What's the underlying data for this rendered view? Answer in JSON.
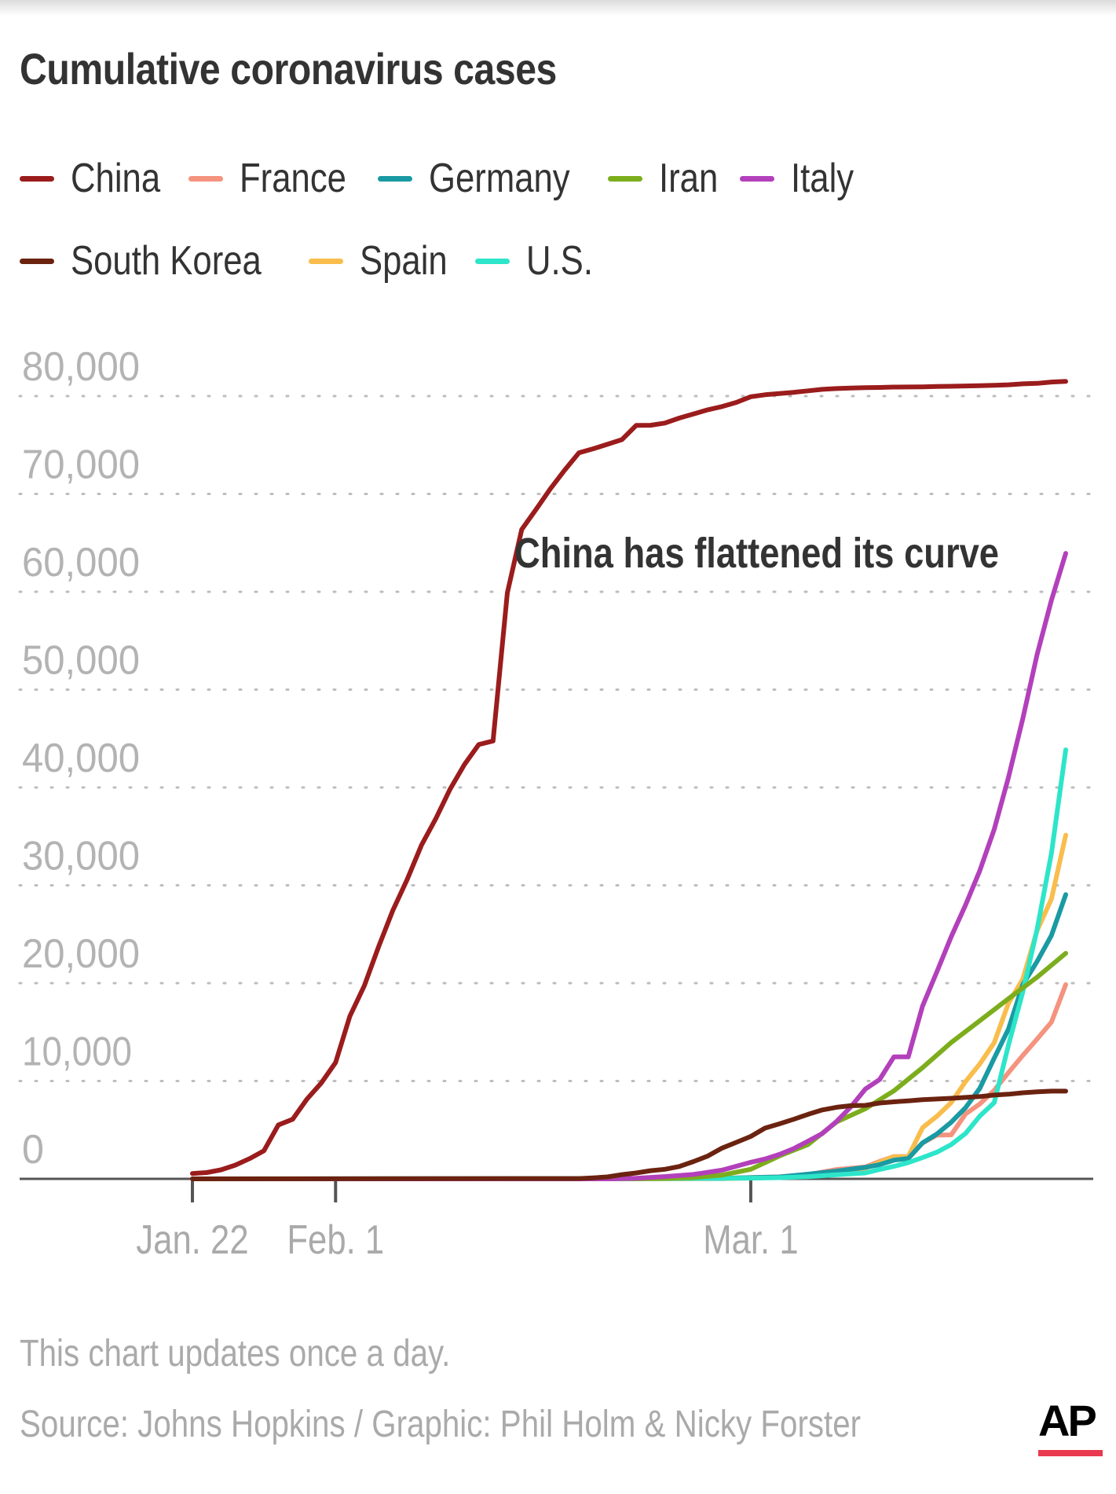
{
  "title": "Cumulative coronavirus cases",
  "note": "This chart updates once a day.",
  "source": "Source: Johns Hopkins / Graphic: Phil Holm & Nicky Forster",
  "logo": "AP",
  "logo_accent_color": "#e8394f",
  "chart_data": {
    "type": "line",
    "title": "Cumulative coronavirus cases",
    "annotation": "China has flattened its curve",
    "x_tick_labels": [
      "Jan. 22",
      "Feb. 1",
      "Mar. 1"
    ],
    "x_tick_dates": [
      "2020-01-22",
      "2020-02-01",
      "2020-03-01"
    ],
    "x_range": [
      "2020-01-22",
      "2020-03-24"
    ],
    "y_tick_labels": [
      "0",
      "10,000",
      "20,000",
      "30,000",
      "40,000",
      "50,000",
      "60,000",
      "70,000",
      "80,000"
    ],
    "y_ticks": [
      0,
      10000,
      20000,
      30000,
      40000,
      50000,
      60000,
      70000,
      80000
    ],
    "ylim": [
      0,
      80000
    ],
    "grid": "horizontal dotted",
    "legend_position": "top",
    "series": [
      {
        "name": "China",
        "color": "#9b1c1c",
        "points": [
          [
            "2020-01-22",
            548
          ],
          [
            "2020-01-23",
            643
          ],
          [
            "2020-01-24",
            920
          ],
          [
            "2020-01-25",
            1406
          ],
          [
            "2020-01-26",
            2075
          ],
          [
            "2020-01-27",
            2877
          ],
          [
            "2020-01-28",
            5509
          ],
          [
            "2020-01-29",
            6087
          ],
          [
            "2020-01-30",
            8141
          ],
          [
            "2020-01-31",
            9802
          ],
          [
            "2020-02-01",
            11891
          ],
          [
            "2020-02-02",
            16630
          ],
          [
            "2020-02-03",
            19716
          ],
          [
            "2020-02-04",
            23707
          ],
          [
            "2020-02-05",
            27440
          ],
          [
            "2020-02-06",
            30587
          ],
          [
            "2020-02-07",
            34110
          ],
          [
            "2020-02-08",
            36814
          ],
          [
            "2020-02-09",
            39829
          ],
          [
            "2020-02-10",
            42354
          ],
          [
            "2020-02-11",
            44386
          ],
          [
            "2020-02-12",
            44759
          ],
          [
            "2020-02-13",
            59895
          ],
          [
            "2020-02-14",
            66358
          ],
          [
            "2020-02-15",
            68413
          ],
          [
            "2020-02-16",
            70513
          ],
          [
            "2020-02-17",
            72434
          ],
          [
            "2020-02-18",
            74211
          ],
          [
            "2020-02-19",
            74619
          ],
          [
            "2020-02-20",
            75077
          ],
          [
            "2020-02-21",
            75550
          ],
          [
            "2020-02-22",
            77001
          ],
          [
            "2020-02-23",
            77022
          ],
          [
            "2020-02-24",
            77241
          ],
          [
            "2020-02-25",
            77754
          ],
          [
            "2020-02-26",
            78166
          ],
          [
            "2020-02-27",
            78600
          ],
          [
            "2020-02-28",
            78928
          ],
          [
            "2020-02-29",
            79356
          ],
          [
            "2020-03-01",
            79932
          ],
          [
            "2020-03-02",
            80136
          ],
          [
            "2020-03-03",
            80261
          ],
          [
            "2020-03-04",
            80386
          ],
          [
            "2020-03-05",
            80537
          ],
          [
            "2020-03-06",
            80690
          ],
          [
            "2020-03-07",
            80770
          ],
          [
            "2020-03-08",
            80823
          ],
          [
            "2020-03-09",
            80860
          ],
          [
            "2020-03-10",
            80887
          ],
          [
            "2020-03-11",
            80921
          ],
          [
            "2020-03-12",
            80932
          ],
          [
            "2020-03-13",
            80945
          ],
          [
            "2020-03-14",
            80977
          ],
          [
            "2020-03-15",
            81003
          ],
          [
            "2020-03-16",
            81033
          ],
          [
            "2020-03-17",
            81058
          ],
          [
            "2020-03-18",
            81102
          ],
          [
            "2020-03-19",
            81156
          ],
          [
            "2020-03-20",
            81250
          ],
          [
            "2020-03-21",
            81305
          ],
          [
            "2020-03-22",
            81435
          ],
          [
            "2020-03-23",
            81498
          ]
        ]
      },
      {
        "name": "France",
        "color": "#f4937e",
        "points": [
          [
            "2020-01-22",
            0
          ],
          [
            "2020-02-20",
            12
          ],
          [
            "2020-02-28",
            57
          ],
          [
            "2020-03-01",
            130
          ],
          [
            "2020-03-03",
            212
          ],
          [
            "2020-03-05",
            423
          ],
          [
            "2020-03-07",
            955
          ],
          [
            "2020-03-09",
            1209
          ],
          [
            "2020-03-10",
            1784
          ],
          [
            "2020-03-11",
            2284
          ],
          [
            "2020-03-12",
            2284
          ],
          [
            "2020-03-13",
            3661
          ],
          [
            "2020-03-14",
            4469
          ],
          [
            "2020-03-15",
            4499
          ],
          [
            "2020-03-16",
            6633
          ],
          [
            "2020-03-17",
            7652
          ],
          [
            "2020-03-18",
            9043
          ],
          [
            "2020-03-19",
            10871
          ],
          [
            "2020-03-20",
            12612
          ],
          [
            "2020-03-21",
            14282
          ],
          [
            "2020-03-22",
            16018
          ],
          [
            "2020-03-23",
            19856
          ]
        ]
      },
      {
        "name": "Germany",
        "color": "#1a9aa3",
        "points": [
          [
            "2020-01-22",
            0
          ],
          [
            "2020-02-20",
            16
          ],
          [
            "2020-02-28",
            48
          ],
          [
            "2020-03-01",
            130
          ],
          [
            "2020-03-03",
            196
          ],
          [
            "2020-03-05",
            482
          ],
          [
            "2020-03-07",
            799
          ],
          [
            "2020-03-09",
            1176
          ],
          [
            "2020-03-10",
            1457
          ],
          [
            "2020-03-11",
            1908
          ],
          [
            "2020-03-12",
            2078
          ],
          [
            "2020-03-13",
            3675
          ],
          [
            "2020-03-14",
            4585
          ],
          [
            "2020-03-15",
            5795
          ],
          [
            "2020-03-16",
            7272
          ],
          [
            "2020-03-17",
            9257
          ],
          [
            "2020-03-18",
            12327
          ],
          [
            "2020-03-19",
            15320
          ],
          [
            "2020-03-20",
            19848
          ],
          [
            "2020-03-21",
            22213
          ],
          [
            "2020-03-22",
            24873
          ],
          [
            "2020-03-23",
            29056
          ]
        ]
      },
      {
        "name": "Iran",
        "color": "#7cad1c",
        "points": [
          [
            "2020-01-22",
            0
          ],
          [
            "2020-02-18",
            0
          ],
          [
            "2020-02-22",
            28
          ],
          [
            "2020-02-24",
            61
          ],
          [
            "2020-02-26",
            139
          ],
          [
            "2020-02-28",
            388
          ],
          [
            "2020-03-01",
            978
          ],
          [
            "2020-03-03",
            2336
          ],
          [
            "2020-03-05",
            3513
          ],
          [
            "2020-03-07",
            5823
          ],
          [
            "2020-03-09",
            7161
          ],
          [
            "2020-03-11",
            9000
          ],
          [
            "2020-03-13",
            11364
          ],
          [
            "2020-03-15",
            13938
          ],
          [
            "2020-03-17",
            16169
          ],
          [
            "2020-03-19",
            18407
          ],
          [
            "2020-03-21",
            20610
          ],
          [
            "2020-03-23",
            23049
          ]
        ]
      },
      {
        "name": "Italy",
        "color": "#b340bb",
        "points": [
          [
            "2020-01-22",
            0
          ],
          [
            "2020-02-20",
            3
          ],
          [
            "2020-02-22",
            62
          ],
          [
            "2020-02-24",
            229
          ],
          [
            "2020-02-26",
            453
          ],
          [
            "2020-02-28",
            888
          ],
          [
            "2020-03-01",
            1694
          ],
          [
            "2020-03-02",
            2036
          ],
          [
            "2020-03-03",
            2502
          ],
          [
            "2020-03-04",
            3089
          ],
          [
            "2020-03-05",
            3858
          ],
          [
            "2020-03-06",
            4636
          ],
          [
            "2020-03-07",
            5883
          ],
          [
            "2020-03-08",
            7375
          ],
          [
            "2020-03-09",
            9172
          ],
          [
            "2020-03-10",
            10149
          ],
          [
            "2020-03-11",
            12462
          ],
          [
            "2020-03-12",
            12462
          ],
          [
            "2020-03-13",
            17660
          ],
          [
            "2020-03-14",
            21157
          ],
          [
            "2020-03-15",
            24747
          ],
          [
            "2020-03-16",
            27980
          ],
          [
            "2020-03-17",
            31506
          ],
          [
            "2020-03-18",
            35713
          ],
          [
            "2020-03-19",
            41035
          ],
          [
            "2020-03-20",
            47021
          ],
          [
            "2020-03-21",
            53578
          ],
          [
            "2020-03-22",
            59138
          ],
          [
            "2020-03-23",
            63927
          ]
        ]
      },
      {
        "name": "South Korea",
        "color": "#6b2310",
        "points": [
          [
            "2020-01-22",
            1
          ],
          [
            "2020-02-16",
            29
          ],
          [
            "2020-02-18",
            31
          ],
          [
            "2020-02-19",
            104
          ],
          [
            "2020-02-20",
            204
          ],
          [
            "2020-02-21",
            433
          ],
          [
            "2020-02-22",
            602
          ],
          [
            "2020-02-23",
            833
          ],
          [
            "2020-02-24",
            977
          ],
          [
            "2020-02-25",
            1261
          ],
          [
            "2020-02-26",
            1766
          ],
          [
            "2020-02-27",
            2337
          ],
          [
            "2020-02-28",
            3150
          ],
          [
            "2020-02-29",
            3736
          ],
          [
            "2020-03-01",
            4335
          ],
          [
            "2020-03-02",
            5186
          ],
          [
            "2020-03-03",
            5621
          ],
          [
            "2020-03-04",
            6088
          ],
          [
            "2020-03-05",
            6593
          ],
          [
            "2020-03-06",
            7041
          ],
          [
            "2020-03-07",
            7314
          ],
          [
            "2020-03-08",
            7478
          ],
          [
            "2020-03-09",
            7513
          ],
          [
            "2020-03-10",
            7755
          ],
          [
            "2020-03-11",
            7869
          ],
          [
            "2020-03-12",
            7979
          ],
          [
            "2020-03-13",
            8086
          ],
          [
            "2020-03-14",
            8162
          ],
          [
            "2020-03-15",
            8236
          ],
          [
            "2020-03-16",
            8320
          ],
          [
            "2020-03-17",
            8413
          ],
          [
            "2020-03-18",
            8565
          ],
          [
            "2020-03-19",
            8652
          ],
          [
            "2020-03-20",
            8799
          ],
          [
            "2020-03-21",
            8897
          ],
          [
            "2020-03-22",
            8961
          ],
          [
            "2020-03-23",
            8961
          ]
        ]
      },
      {
        "name": "Spain",
        "color": "#f9bd4d",
        "points": [
          [
            "2020-01-22",
            0
          ],
          [
            "2020-02-24",
            2
          ],
          [
            "2020-02-28",
            32
          ],
          [
            "2020-03-01",
            84
          ],
          [
            "2020-03-03",
            165
          ],
          [
            "2020-03-05",
            282
          ],
          [
            "2020-03-07",
            500
          ],
          [
            "2020-03-09",
            1073
          ],
          [
            "2020-03-10",
            1695
          ],
          [
            "2020-03-11",
            2277
          ],
          [
            "2020-03-12",
            2277
          ],
          [
            "2020-03-13",
            5232
          ],
          [
            "2020-03-14",
            6391
          ],
          [
            "2020-03-15",
            7798
          ],
          [
            "2020-03-16",
            9942
          ],
          [
            "2020-03-17",
            11748
          ],
          [
            "2020-03-18",
            13910
          ],
          [
            "2020-03-19",
            17963
          ],
          [
            "2020-03-20",
            20410
          ],
          [
            "2020-03-21",
            25374
          ],
          [
            "2020-03-22",
            28603
          ],
          [
            "2020-03-23",
            35136
          ]
        ]
      },
      {
        "name": "U.S.",
        "color": "#2de5c9",
        "points": [
          [
            "2020-01-22",
            1
          ],
          [
            "2020-02-20",
            13
          ],
          [
            "2020-02-28",
            62
          ],
          [
            "2020-03-01",
            74
          ],
          [
            "2020-03-03",
            122
          ],
          [
            "2020-03-05",
            221
          ],
          [
            "2020-03-07",
            417
          ],
          [
            "2020-03-09",
            605
          ],
          [
            "2020-03-10",
            959
          ],
          [
            "2020-03-11",
            1281
          ],
          [
            "2020-03-12",
            1663
          ],
          [
            "2020-03-13",
            2179
          ],
          [
            "2020-03-14",
            2726
          ],
          [
            "2020-03-15",
            3499
          ],
          [
            "2020-03-16",
            4632
          ],
          [
            "2020-03-17",
            6421
          ],
          [
            "2020-03-18",
            7786
          ],
          [
            "2020-03-19",
            13680
          ],
          [
            "2020-03-20",
            19101
          ],
          [
            "2020-03-21",
            25493
          ],
          [
            "2020-03-22",
            33276
          ],
          [
            "2020-03-23",
            43847
          ]
        ]
      }
    ]
  }
}
